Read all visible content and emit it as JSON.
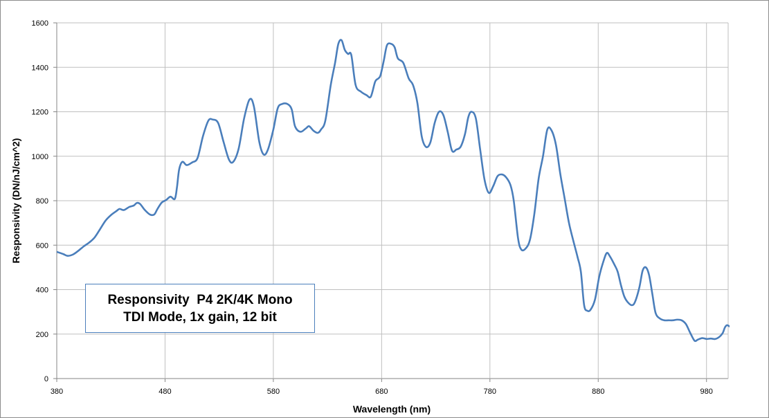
{
  "chart_data": {
    "type": "line",
    "title": "",
    "xlabel": "Wavelength (nm)",
    "ylabel": "Responsivity (DN/nJ/cm^2)",
    "xlim": [
      380,
      1000
    ],
    "ylim": [
      0,
      1600
    ],
    "xticks": [
      380,
      480,
      580,
      680,
      780,
      880,
      980
    ],
    "yticks": [
      0,
      200,
      400,
      600,
      800,
      1000,
      1200,
      1400,
      1600
    ],
    "grid": true,
    "legend": "none",
    "annotation": {
      "line1": "Responsivity  P4 2K/4K Mono",
      "line2": "TDI Mode, 1x gain, 12 bit"
    },
    "series": [
      {
        "color": "#4a7ebb",
        "points": [
          [
            380,
            570
          ],
          [
            386,
            560
          ],
          [
            390,
            552
          ],
          [
            395,
            558
          ],
          [
            400,
            575
          ],
          [
            405,
            595
          ],
          [
            410,
            612
          ],
          [
            415,
            635
          ],
          [
            420,
            672
          ],
          [
            425,
            710
          ],
          [
            430,
            735
          ],
          [
            435,
            753
          ],
          [
            438,
            763
          ],
          [
            442,
            758
          ],
          [
            447,
            772
          ],
          [
            451,
            778
          ],
          [
            454,
            790
          ],
          [
            457,
            785
          ],
          [
            461,
            760
          ],
          [
            466,
            738
          ],
          [
            470,
            738
          ],
          [
            473,
            763
          ],
          [
            477,
            792
          ],
          [
            481,
            803
          ],
          [
            485,
            818
          ],
          [
            489,
            808
          ],
          [
            491,
            860
          ],
          [
            493,
            940
          ],
          [
            496,
            975
          ],
          [
            500,
            960
          ],
          [
            505,
            972
          ],
          [
            510,
            992
          ],
          [
            515,
            1090
          ],
          [
            520,
            1160
          ],
          [
            524,
            1165
          ],
          [
            529,
            1150
          ],
          [
            534,
            1065
          ],
          [
            539,
            985
          ],
          [
            543,
            975
          ],
          [
            548,
            1035
          ],
          [
            553,
            1170
          ],
          [
            558,
            1255
          ],
          [
            562,
            1225
          ],
          [
            567,
            1065
          ],
          [
            571,
            1008
          ],
          [
            575,
            1030
          ],
          [
            580,
            1120
          ],
          [
            584,
            1215
          ],
          [
            588,
            1235
          ],
          [
            593,
            1235
          ],
          [
            597,
            1210
          ],
          [
            600,
            1135
          ],
          [
            605,
            1110
          ],
          [
            610,
            1125
          ],
          [
            613,
            1135
          ],
          [
            617,
            1115
          ],
          [
            621,
            1105
          ],
          [
            624,
            1120
          ],
          [
            628,
            1160
          ],
          [
            633,
            1320
          ],
          [
            637,
            1420
          ],
          [
            640,
            1505
          ],
          [
            643,
            1522
          ],
          [
            646,
            1478
          ],
          [
            649,
            1460
          ],
          [
            652,
            1455
          ],
          [
            656,
            1320
          ],
          [
            661,
            1290
          ],
          [
            666,
            1275
          ],
          [
            670,
            1268
          ],
          [
            674,
            1335
          ],
          [
            677,
            1350
          ],
          [
            679,
            1365
          ],
          [
            682,
            1430
          ],
          [
            685,
            1500
          ],
          [
            689,
            1505
          ],
          [
            692,
            1490
          ],
          [
            695,
            1440
          ],
          [
            700,
            1420
          ],
          [
            705,
            1350
          ],
          [
            709,
            1320
          ],
          [
            713,
            1240
          ],
          [
            717,
            1090
          ],
          [
            721,
            1042
          ],
          [
            725,
            1062
          ],
          [
            729,
            1150
          ],
          [
            733,
            1200
          ],
          [
            737,
            1185
          ],
          [
            741,
            1110
          ],
          [
            745,
            1025
          ],
          [
            749,
            1030
          ],
          [
            753,
            1043
          ],
          [
            757,
            1100
          ],
          [
            760,
            1175
          ],
          [
            763,
            1200
          ],
          [
            767,
            1170
          ],
          [
            771,
            1030
          ],
          [
            775,
            895
          ],
          [
            779,
            835
          ],
          [
            783,
            865
          ],
          [
            787,
            910
          ],
          [
            791,
            918
          ],
          [
            795,
            905
          ],
          [
            799,
            870
          ],
          [
            802,
            800
          ],
          [
            806,
            630
          ],
          [
            809,
            580
          ],
          [
            813,
            585
          ],
          [
            817,
            625
          ],
          [
            821,
            740
          ],
          [
            825,
            900
          ],
          [
            829,
            1000
          ],
          [
            833,
            1120
          ],
          [
            837,
            1115
          ],
          [
            841,
            1050
          ],
          [
            845,
            920
          ],
          [
            849,
            810
          ],
          [
            853,
            700
          ],
          [
            857,
            620
          ],
          [
            861,
            545
          ],
          [
            864,
            480
          ],
          [
            867,
            330
          ],
          [
            870,
            305
          ],
          [
            873,
            310
          ],
          [
            877,
            355
          ],
          [
            881,
            460
          ],
          [
            885,
            530
          ],
          [
            888,
            565
          ],
          [
            891,
            548
          ],
          [
            895,
            512
          ],
          [
            898,
            480
          ],
          [
            901,
            420
          ],
          [
            904,
            370
          ],
          [
            907,
            345
          ],
          [
            911,
            330
          ],
          [
            914,
            345
          ],
          [
            918,
            410
          ],
          [
            921,
            485
          ],
          [
            924,
            500
          ],
          [
            927,
            465
          ],
          [
            930,
            380
          ],
          [
            933,
            295
          ],
          [
            937,
            270
          ],
          [
            941,
            262
          ],
          [
            945,
            262
          ],
          [
            949,
            262
          ],
          [
            953,
            265
          ],
          [
            957,
            262
          ],
          [
            961,
            245
          ],
          [
            965,
            205
          ],
          [
            969,
            170
          ],
          [
            972,
            175
          ],
          [
            976,
            182
          ],
          [
            980,
            178
          ],
          [
            984,
            180
          ],
          [
            988,
            178
          ],
          [
            992,
            188
          ],
          [
            995,
            205
          ],
          [
            997,
            230
          ],
          [
            999,
            240
          ],
          [
            1002,
            232
          ],
          [
            1004,
            222
          ],
          [
            1006,
            212
          ]
        ]
      }
    ]
  }
}
